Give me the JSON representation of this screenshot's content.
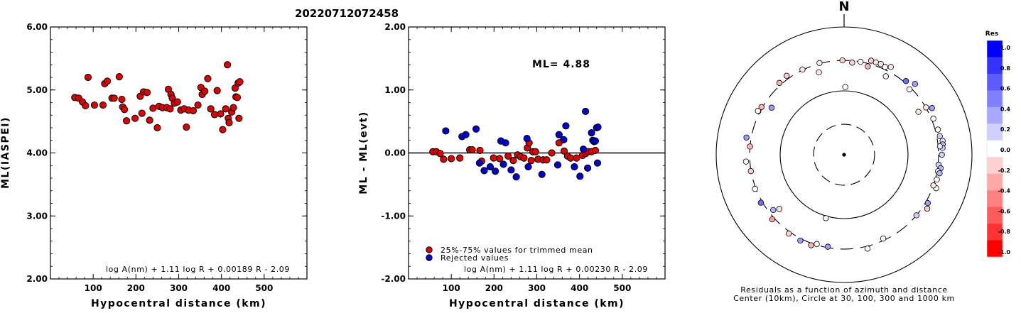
{
  "title": "20220712072458",
  "chart_data": [
    {
      "type": "scatter",
      "id": "ml-vs-distance",
      "xlabel": "Hypocentral distance (km)",
      "ylabel": "ML(IASPEI)",
      "xlim": [
        0,
        600
      ],
      "ylim": [
        2.0,
        6.0
      ],
      "xticks": [
        "100",
        "200",
        "300",
        "400",
        "500"
      ],
      "yticks": [
        "2.00",
        "3.00",
        "4.00",
        "5.00",
        "6.00"
      ],
      "formula": "log A(nm) + 1.11 log R + 0.00189 R - 2.09",
      "series": [
        {
          "color": "#dd0000",
          "points": [
            [
              57,
              4.88
            ],
            [
              66,
              4.87
            ],
            [
              75,
              4.81
            ],
            [
              82,
              4.75
            ],
            [
              88,
              5.2
            ],
            [
              103,
              4.76
            ],
            [
              123,
              4.76
            ],
            [
              127,
              5.1
            ],
            [
              133,
              5.14
            ],
            [
              144,
              4.87
            ],
            [
              149,
              4.87
            ],
            [
              161,
              5.21
            ],
            [
              167,
              4.85
            ],
            [
              169,
              4.73
            ],
            [
              173,
              4.69
            ],
            [
              178,
              4.51
            ],
            [
              198,
              4.55
            ],
            [
              210,
              4.9
            ],
            [
              214,
              4.63
            ],
            [
              218,
              4.97
            ],
            [
              226,
              4.96
            ],
            [
              232,
              4.52
            ],
            [
              240,
              4.71
            ],
            [
              250,
              4.4
            ],
            [
              254,
              4.74
            ],
            [
              262,
              4.72
            ],
            [
              272,
              4.72
            ],
            [
              276,
              5.01
            ],
            [
              280,
              4.7
            ],
            [
              282,
              4.93
            ],
            [
              285,
              4.87
            ],
            [
              290,
              4.79
            ],
            [
              297,
              4.81
            ],
            [
              305,
              4.68
            ],
            [
              313,
              4.7
            ],
            [
              318,
              4.41
            ],
            [
              323,
              4.68
            ],
            [
              334,
              4.67
            ],
            [
              345,
              4.76
            ],
            [
              352,
              5.04
            ],
            [
              355,
              4.93
            ],
            [
              361,
              4.98
            ],
            [
              368,
              5.18
            ],
            [
              375,
              4.7
            ],
            [
              384,
              4.61
            ],
            [
              390,
              4.99
            ],
            [
              398,
              4.62
            ],
            [
              403,
              4.37
            ],
            [
              410,
              4.7
            ],
            [
              414,
              5.4
            ],
            [
              416,
              4.55
            ],
            [
              418,
              4.48
            ],
            [
              424,
              4.65
            ],
            [
              428,
              4.72
            ],
            [
              432,
              5.03
            ],
            [
              434,
              4.89
            ],
            [
              437,
              4.88
            ],
            [
              439,
              5.11
            ],
            [
              441,
              4.55
            ],
            [
              443,
              5.13
            ]
          ]
        }
      ]
    },
    {
      "type": "scatter",
      "id": "residual-vs-distance",
      "xlabel": "Hypocentral distance (km)",
      "ylabel": "ML - ML(evt)",
      "xlim": [
        0,
        600
      ],
      "ylim": [
        -2.0,
        2.0
      ],
      "xticks": [
        "100",
        "200",
        "300",
        "400",
        "500"
      ],
      "yticks": [
        "-2.00",
        "-1.00",
        "0.00",
        "1.00",
        "2.00"
      ],
      "annotation": "ML= 4.88",
      "formula": "log A(nm) + 1.11 log R + 0.00230 R - 2.09",
      "legend": [
        "25%-75% values for trimmed mean",
        "Rejected values"
      ],
      "legend_position": "bottom-left",
      "series": [
        {
          "name": "25%-75% values for trimmed mean",
          "color": "#dd0000",
          "points": [
            [
              57,
              0.02
            ],
            [
              65,
              0.02
            ],
            [
              74,
              -0.01
            ],
            [
              82,
              -0.1
            ],
            [
              100,
              -0.09
            ],
            [
              120,
              -0.08
            ],
            [
              143,
              0.05
            ],
            [
              149,
              0.05
            ],
            [
              167,
              0.04
            ],
            [
              171,
              -0.13
            ],
            [
              199,
              -0.08
            ],
            [
              213,
              -0.09
            ],
            [
              233,
              -0.05
            ],
            [
              245,
              -0.12
            ],
            [
              255,
              -0.03
            ],
            [
              262,
              -0.06
            ],
            [
              270,
              -0.08
            ],
            [
              278,
              0.08
            ],
            [
              282,
              0.16
            ],
            [
              287,
              -0.12
            ],
            [
              291,
              0.02
            ],
            [
              297,
              0.02
            ],
            [
              303,
              -0.1
            ],
            [
              315,
              -0.11
            ],
            [
              323,
              -0.11
            ],
            [
              335,
              0.0
            ],
            [
              352,
              0.16
            ],
            [
              364,
              0.03
            ],
            [
              372,
              -0.05
            ],
            [
              379,
              -0.08
            ],
            [
              393,
              -0.08
            ],
            [
              407,
              -0.04
            ],
            [
              414,
              -0.01
            ],
            [
              420,
              0.02
            ],
            [
              428,
              0.02
            ],
            [
              437,
              0.04
            ]
          ]
        },
        {
          "name": "Rejected values",
          "color": "#0000cc",
          "points": [
            [
              87,
              0.35
            ],
            [
              125,
              0.26
            ],
            [
              134,
              0.29
            ],
            [
              158,
              0.38
            ],
            [
              166,
              -0.16
            ],
            [
              177,
              -0.28
            ],
            [
              191,
              -0.22
            ],
            [
              203,
              -0.29
            ],
            [
              216,
              0.19
            ],
            [
              222,
              -0.18
            ],
            [
              227,
              0.16
            ],
            [
              240,
              -0.27
            ],
            [
              252,
              -0.38
            ],
            [
              277,
              0.23
            ],
            [
              280,
              -0.22
            ],
            [
              312,
              -0.34
            ],
            [
              349,
              -0.19
            ],
            [
              352,
              0.29
            ],
            [
              363,
              0.21
            ],
            [
              368,
              0.43
            ],
            [
              388,
              -0.22
            ],
            [
              401,
              -0.37
            ],
            [
              409,
              0.06
            ],
            [
              414,
              0.66
            ],
            [
              419,
              -0.24
            ],
            [
              428,
              0.32
            ],
            [
              431,
              0.2
            ],
            [
              434,
              0.18
            ],
            [
              437,
              0.19
            ],
            [
              440,
              0.4
            ],
            [
              442,
              -0.16
            ],
            [
              443,
              0.41
            ]
          ]
        }
      ]
    },
    {
      "type": "scatter",
      "id": "azimuth-residual-map",
      "north_label": "N",
      "caption_line1": "Residuals as a function of azimuth and distance",
      "caption_line2": "Center (10km), Circle at 30, 100, 300 and 1000 km",
      "rings_km": [
        10,
        30,
        100,
        300,
        1000
      ],
      "colorbar": {
        "label": "Res",
        "ticks": [
          "1.0",
          "0.8",
          "0.6",
          "0.4",
          "0.2",
          "0.0",
          "-0.2",
          "-0.4",
          "-0.6",
          "-0.8",
          "-1.0"
        ],
        "colors": [
          "#0000ff",
          "#3333ff",
          "#5b5bff",
          "#8080ff",
          "#a8a8ff",
          "#d0d0ff",
          "#ffffff",
          "#ffd0d0",
          "#ffa8a8",
          "#ff8080",
          "#ff5b5b",
          "#ff3333",
          "#ff0000"
        ]
      },
      "stations": [
        {
          "azimuth": 1,
          "distance_km": 115,
          "residual": 0.0
        },
        {
          "azimuth": 343,
          "distance_km": 223,
          "residual": -0.1
        },
        {
          "azimuth": 359,
          "distance_km": 300,
          "residual": -0.2
        },
        {
          "azimuth": 5,
          "distance_km": 280,
          "residual": -0.2
        },
        {
          "azimuth": 10,
          "distance_km": 300,
          "residual": 0.0
        },
        {
          "azimuth": 16,
          "distance_km": 340,
          "residual": -0.2
        },
        {
          "azimuth": 19,
          "distance_km": 338,
          "residual": -0.1
        },
        {
          "azimuth": 22,
          "distance_km": 340,
          "residual": -0.1
        },
        {
          "azimuth": 25,
          "distance_km": 328,
          "residual": 0.0
        },
        {
          "azimuth": 28,
          "distance_km": 360,
          "residual": -0.1
        },
        {
          "azimuth": 15,
          "distance_km": 270,
          "residual": -0.3
        },
        {
          "azimuth": 28,
          "distance_km": 246,
          "residual": 0.0
        },
        {
          "azimuth": 40,
          "distance_km": 320,
          "residual": 0.6
        },
        {
          "azimuth": 45,
          "distance_km": 370,
          "residual": 0.4
        },
        {
          "azimuth": 45,
          "distance_km": 280,
          "residual": 0.0
        },
        {
          "azimuth": 60,
          "distance_km": 302,
          "residual": -0.1
        },
        {
          "azimuth": 62,
          "distance_km": 360,
          "residual": 0.4
        },
        {
          "azimuth": 68,
          "distance_km": 320,
          "residual": 0.0
        },
        {
          "azimuth": 60,
          "distance_km": 220,
          "residual": -0.1
        },
        {
          "azimuth": 75,
          "distance_km": 330,
          "residual": 0.0
        },
        {
          "azimuth": 79,
          "distance_km": 335,
          "residual": 0.2
        },
        {
          "azimuth": 82,
          "distance_km": 360,
          "residual": 0.1
        },
        {
          "azimuth": 84,
          "distance_km": 355,
          "residual": 0.3
        },
        {
          "azimuth": 86,
          "distance_km": 350,
          "residual": 0.2
        },
        {
          "azimuth": 85,
          "distance_km": 320,
          "residual": 0.1
        },
        {
          "azimuth": 90,
          "distance_km": 338,
          "residual": 0.2
        },
        {
          "azimuth": 96,
          "distance_km": 306,
          "residual": 0.2
        },
        {
          "azimuth": 98,
          "distance_km": 335,
          "residual": 0.3
        },
        {
          "azimuth": 100,
          "distance_km": 310,
          "residual": -0.1
        },
        {
          "azimuth": 101,
          "distance_km": 332,
          "residual": 0.3
        },
        {
          "azimuth": 105,
          "distance_km": 317,
          "residual": 0.0
        },
        {
          "azimuth": 110,
          "distance_km": 340,
          "residual": 0.0
        },
        {
          "azimuth": 109,
          "distance_km": 300,
          "residual": -0.1
        },
        {
          "azimuth": 120,
          "distance_km": 325,
          "residual": 0.4
        },
        {
          "azimuth": 123,
          "distance_km": 355,
          "residual": -0.2
        },
        {
          "azimuth": 130,
          "distance_km": 300,
          "residual": 0.2
        },
        {
          "azimuth": 155,
          "distance_km": 280,
          "residual": 0.0
        },
        {
          "azimuth": 166,
          "distance_km": 327,
          "residual": 0.0
        },
        {
          "azimuth": 190,
          "distance_km": 290,
          "residual": 0.4
        },
        {
          "azimuth": 197,
          "distance_km": 290,
          "residual": 0.0
        },
        {
          "azimuth": 200,
          "distance_km": 322,
          "residual": -0.3
        },
        {
          "azimuth": 196,
          "distance_km": 108,
          "residual": 0.0
        },
        {
          "azimuth": 207,
          "distance_km": 322,
          "residual": 0.4
        },
        {
          "azimuth": 215,
          "distance_km": 322,
          "residual": -0.2
        },
        {
          "azimuth": 228,
          "distance_km": 325,
          "residual": -0.4
        },
        {
          "azimuth": 230,
          "distance_km": 210,
          "residual": -0.1
        },
        {
          "azimuth": 232,
          "distance_km": 255,
          "residual": 0.3
        },
        {
          "azimuth": 240,
          "distance_km": 318,
          "residual": 0.6
        },
        {
          "azimuth": 249,
          "distance_km": 310,
          "residual": 0.0
        },
        {
          "azimuth": 260,
          "distance_km": 302,
          "residual": -0.2
        },
        {
          "azimuth": 266,
          "distance_km": 345,
          "residual": 0.0
        },
        {
          "azimuth": 275,
          "distance_km": 300,
          "residual": -0.3
        },
        {
          "azimuth": 280,
          "distance_km": 355,
          "residual": 0.4
        },
        {
          "azimuth": 297,
          "distance_km": 320,
          "residual": -0.5
        },
        {
          "azimuth": 300,
          "distance_km": 310,
          "residual": -0.3
        },
        {
          "azimuth": 297,
          "distance_km": 325,
          "residual": 0.0
        },
        {
          "azimuth": 303,
          "distance_km": 225,
          "residual": 0.4
        },
        {
          "azimuth": 318,
          "distance_km": 325,
          "residual": -0.3
        },
        {
          "azimuth": 324,
          "distance_km": 337,
          "residual": -0.2
        },
        {
          "azimuth": 334,
          "distance_km": 305,
          "residual": -0.1
        },
        {
          "azimuth": 345,
          "distance_km": 306,
          "residual": -0.1
        }
      ]
    }
  ]
}
